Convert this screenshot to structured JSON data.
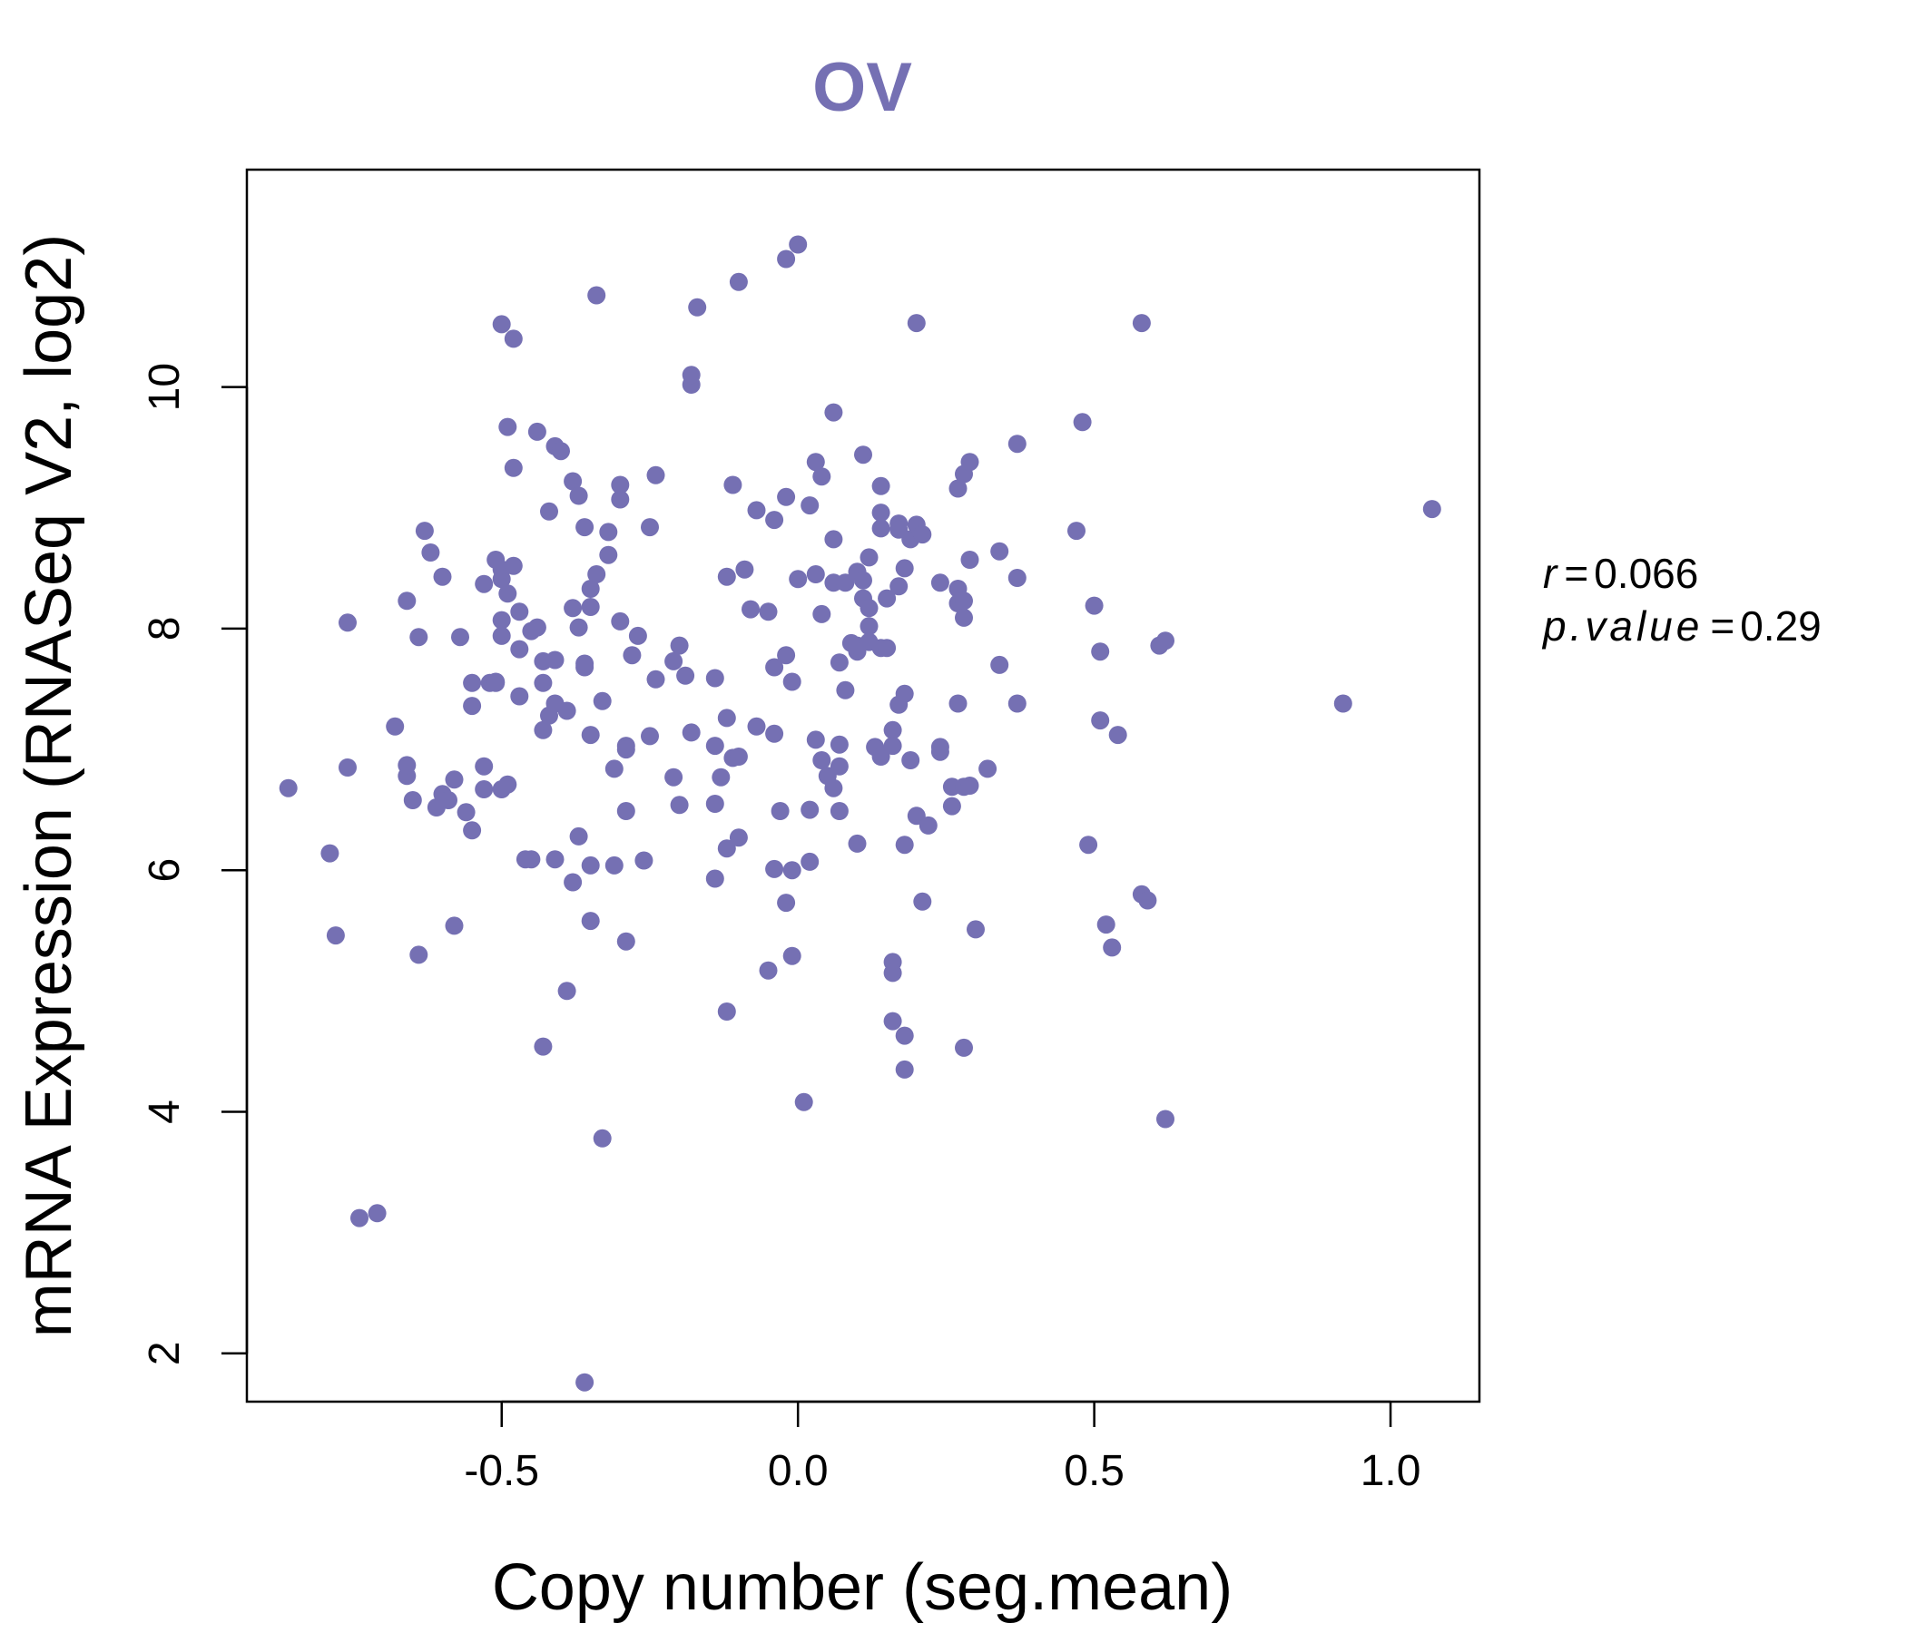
{
  "chart_data": {
    "type": "scatter",
    "title": "OV",
    "xlabel": "Copy number (seg.mean)",
    "ylabel": "mRNA Expression (RNASeq V2, log2)",
    "xlim": [
      -0.93,
      1.15
    ],
    "ylim": [
      1.6,
      11.8
    ],
    "x_ticks": [
      -0.5,
      0.0,
      0.5,
      1.0
    ],
    "x_tick_labels": [
      "-0.5",
      "0.0",
      "0.5",
      "1.0"
    ],
    "y_ticks": [
      2,
      4,
      6,
      8,
      10
    ],
    "y_tick_labels": [
      "2",
      "4",
      "6",
      "8",
      "10"
    ],
    "grid": false,
    "legend": "none",
    "colors": {
      "points": "#7570b3",
      "title": "#7570b3",
      "axes": "#000000"
    },
    "stats": {
      "r_label": "r",
      "r_value": "0.066",
      "p_label": "p.value",
      "p_value": "0.29"
    },
    "points": [
      [
        -0.86,
        6.68
      ],
      [
        -0.79,
        6.14
      ],
      [
        -0.78,
        5.46
      ],
      [
        -0.76,
        6.85
      ],
      [
        -0.76,
        8.05
      ],
      [
        -0.74,
        3.12
      ],
      [
        -0.71,
        3.16
      ],
      [
        -0.68,
        7.19
      ],
      [
        -0.66,
        8.23
      ],
      [
        -0.66,
        6.78
      ],
      [
        -0.66,
        6.87
      ],
      [
        -0.65,
        6.58
      ],
      [
        -0.64,
        5.3
      ],
      [
        -0.64,
        7.93
      ],
      [
        -0.63,
        8.81
      ],
      [
        -0.62,
        8.63
      ],
      [
        -0.61,
        6.52
      ],
      [
        -0.6,
        6.63
      ],
      [
        -0.6,
        8.43
      ],
      [
        -0.59,
        6.58
      ],
      [
        -0.58,
        5.54
      ],
      [
        -0.58,
        6.75
      ],
      [
        -0.57,
        7.93
      ],
      [
        -0.56,
        6.48
      ],
      [
        -0.55,
        6.33
      ],
      [
        -0.55,
        7.36
      ],
      [
        -0.55,
        7.55
      ],
      [
        -0.53,
        6.67
      ],
      [
        -0.53,
        6.86
      ],
      [
        -0.53,
        8.37
      ],
      [
        -0.52,
        7.55
      ],
      [
        -0.51,
        7.56
      ],
      [
        -0.51,
        7.55
      ],
      [
        -0.51,
        8.57
      ],
      [
        -0.5,
        6.67
      ],
      [
        -0.5,
        7.94
      ],
      [
        -0.5,
        8.07
      ],
      [
        -0.5,
        8.41
      ],
      [
        -0.5,
        8.49
      ],
      [
        -0.5,
        10.52
      ],
      [
        -0.49,
        6.71
      ],
      [
        -0.49,
        8.29
      ],
      [
        -0.49,
        9.67
      ],
      [
        -0.48,
        10.4
      ],
      [
        -0.48,
        9.33
      ],
      [
        -0.48,
        8.52
      ],
      [
        -0.47,
        7.44
      ],
      [
        -0.47,
        7.83
      ],
      [
        -0.47,
        8.14
      ],
      [
        -0.46,
        6.09
      ],
      [
        -0.45,
        7.98
      ],
      [
        -0.45,
        6.09
      ],
      [
        -0.44,
        8.01
      ],
      [
        -0.44,
        9.63
      ],
      [
        -0.43,
        4.54
      ],
      [
        -0.43,
        7.16
      ],
      [
        -0.43,
        7.73
      ],
      [
        -0.43,
        7.55
      ],
      [
        -0.42,
        7.28
      ],
      [
        -0.42,
        8.97
      ],
      [
        -0.41,
        6.09
      ],
      [
        -0.41,
        7.38
      ],
      [
        -0.41,
        7.74
      ],
      [
        -0.41,
        9.51
      ],
      [
        -0.4,
        9.47
      ],
      [
        -0.39,
        5.0
      ],
      [
        -0.39,
        7.32
      ],
      [
        -0.38,
        8.17
      ],
      [
        -0.38,
        5.9
      ],
      [
        -0.38,
        9.22
      ],
      [
        -0.37,
        8.01
      ],
      [
        -0.37,
        6.28
      ],
      [
        -0.37,
        9.1
      ],
      [
        -0.36,
        8.84
      ],
      [
        -0.36,
        7.68
      ],
      [
        -0.36,
        7.71
      ],
      [
        -0.36,
        1.76
      ],
      [
        -0.35,
        5.58
      ],
      [
        -0.35,
        6.04
      ],
      [
        -0.35,
        7.12
      ],
      [
        -0.35,
        8.18
      ],
      [
        -0.35,
        8.33
      ],
      [
        -0.34,
        8.45
      ],
      [
        -0.34,
        10.76
      ],
      [
        -0.33,
        7.4
      ],
      [
        -0.33,
        3.78
      ],
      [
        -0.32,
        8.61
      ],
      [
        -0.32,
        8.8
      ],
      [
        -0.31,
        6.84
      ],
      [
        -0.31,
        6.04
      ],
      [
        -0.3,
        9.07
      ],
      [
        -0.3,
        9.19
      ],
      [
        -0.3,
        8.06
      ],
      [
        -0.29,
        7.03
      ],
      [
        -0.29,
        7.0
      ],
      [
        -0.29,
        6.49
      ],
      [
        -0.29,
        5.41
      ],
      [
        -0.28,
        7.78
      ],
      [
        -0.27,
        7.94
      ],
      [
        -0.26,
        6.08
      ],
      [
        -0.25,
        8.84
      ],
      [
        -0.25,
        7.11
      ],
      [
        -0.24,
        7.58
      ],
      [
        -0.24,
        9.27
      ],
      [
        -0.21,
        7.73
      ],
      [
        -0.21,
        6.77
      ],
      [
        -0.2,
        7.86
      ],
      [
        -0.2,
        6.54
      ],
      [
        -0.19,
        7.61
      ],
      [
        -0.18,
        7.14
      ],
      [
        -0.18,
        10.02
      ],
      [
        -0.18,
        10.1
      ],
      [
        -0.17,
        10.66
      ],
      [
        -0.14,
        6.55
      ],
      [
        -0.14,
        7.03
      ],
      [
        -0.14,
        7.59
      ],
      [
        -0.14,
        5.93
      ],
      [
        -0.13,
        6.77
      ],
      [
        -0.12,
        4.83
      ],
      [
        -0.12,
        7.26
      ],
      [
        -0.12,
        6.18
      ],
      [
        -0.12,
        8.43
      ],
      [
        -0.11,
        6.93
      ],
      [
        -0.11,
        9.19
      ],
      [
        -0.1,
        6.94
      ],
      [
        -0.1,
        6.27
      ],
      [
        -0.1,
        10.87
      ],
      [
        -0.09,
        8.49
      ],
      [
        -0.08,
        8.16
      ],
      [
        -0.07,
        7.19
      ],
      [
        -0.07,
        8.98
      ],
      [
        -0.05,
        8.14
      ],
      [
        -0.05,
        5.17
      ],
      [
        -0.04,
        7.13
      ],
      [
        -0.04,
        8.9
      ],
      [
        -0.04,
        6.01
      ],
      [
        -0.04,
        7.68
      ],
      [
        -0.03,
        6.49
      ],
      [
        -0.02,
        7.78
      ],
      [
        -0.02,
        9.09
      ],
      [
        -0.02,
        5.73
      ],
      [
        -0.02,
        11.06
      ],
      [
        -0.01,
        5.29
      ],
      [
        -0.01,
        7.56
      ],
      [
        -0.01,
        6.0
      ],
      [
        0.0,
        8.41
      ],
      [
        0.0,
        11.18
      ],
      [
        0.01,
        4.08
      ],
      [
        0.02,
        6.07
      ],
      [
        0.02,
        9.02
      ],
      [
        0.02,
        6.5
      ],
      [
        0.03,
        7.08
      ],
      [
        0.03,
        9.38
      ],
      [
        0.03,
        8.45
      ],
      [
        0.04,
        6.91
      ],
      [
        0.04,
        9.26
      ],
      [
        0.04,
        8.12
      ],
      [
        0.05,
        6.78
      ],
      [
        0.06,
        8.74
      ],
      [
        0.06,
        8.38
      ],
      [
        0.06,
        6.68
      ],
      [
        0.06,
        9.79
      ],
      [
        0.07,
        7.72
      ],
      [
        0.07,
        6.49
      ],
      [
        0.07,
        7.04
      ],
      [
        0.07,
        6.86
      ],
      [
        0.08,
        8.38
      ],
      [
        0.08,
        7.49
      ],
      [
        0.09,
        7.88
      ],
      [
        0.1,
        6.22
      ],
      [
        0.1,
        7.81
      ],
      [
        0.1,
        8.47
      ],
      [
        0.1,
        7.86
      ],
      [
        0.11,
        8.4
      ],
      [
        0.11,
        9.44
      ],
      [
        0.11,
        8.25
      ],
      [
        0.12,
        8.59
      ],
      [
        0.12,
        8.02
      ],
      [
        0.12,
        7.89
      ],
      [
        0.12,
        8.17
      ],
      [
        0.13,
        7.02
      ],
      [
        0.14,
        6.94
      ],
      [
        0.14,
        8.83
      ],
      [
        0.14,
        8.96
      ],
      [
        0.14,
        9.18
      ],
      [
        0.14,
        7.84
      ],
      [
        0.15,
        8.25
      ],
      [
        0.15,
        7.84
      ],
      [
        0.16,
        7.16
      ],
      [
        0.16,
        5.24
      ],
      [
        0.16,
        5.15
      ],
      [
        0.16,
        4.75
      ],
      [
        0.16,
        7.03
      ],
      [
        0.17,
        8.35
      ],
      [
        0.17,
        8.87
      ],
      [
        0.17,
        8.82
      ],
      [
        0.17,
        7.37
      ],
      [
        0.18,
        7.46
      ],
      [
        0.18,
        6.21
      ],
      [
        0.18,
        4.63
      ],
      [
        0.18,
        4.35
      ],
      [
        0.18,
        8.5
      ],
      [
        0.19,
        8.74
      ],
      [
        0.19,
        6.91
      ],
      [
        0.2,
        6.45
      ],
      [
        0.2,
        8.86
      ],
      [
        0.2,
        10.53
      ],
      [
        0.21,
        5.74
      ],
      [
        0.21,
        8.78
      ],
      [
        0.22,
        6.37
      ],
      [
        0.24,
        8.38
      ],
      [
        0.24,
        6.98
      ],
      [
        0.24,
        7.02
      ],
      [
        0.26,
        6.53
      ],
      [
        0.26,
        6.69
      ],
      [
        0.27,
        8.33
      ],
      [
        0.27,
        9.16
      ],
      [
        0.27,
        8.21
      ],
      [
        0.27,
        7.38
      ],
      [
        0.28,
        9.28
      ],
      [
        0.28,
        8.23
      ],
      [
        0.28,
        8.09
      ],
      [
        0.28,
        6.69
      ],
      [
        0.28,
        4.53
      ],
      [
        0.29,
        8.57
      ],
      [
        0.29,
        9.38
      ],
      [
        0.29,
        6.7
      ],
      [
        0.3,
        5.51
      ],
      [
        0.32,
        6.84
      ],
      [
        0.34,
        8.64
      ],
      [
        0.34,
        7.7
      ],
      [
        0.37,
        9.53
      ],
      [
        0.37,
        8.42
      ],
      [
        0.37,
        7.38
      ],
      [
        0.47,
        8.81
      ],
      [
        0.48,
        9.71
      ],
      [
        0.49,
        6.21
      ],
      [
        0.5,
        8.19
      ],
      [
        0.51,
        7.81
      ],
      [
        0.51,
        7.24
      ],
      [
        0.52,
        5.55
      ],
      [
        0.53,
        5.36
      ],
      [
        0.54,
        7.12
      ],
      [
        0.58,
        10.53
      ],
      [
        0.58,
        5.8
      ],
      [
        0.59,
        5.75
      ],
      [
        0.61,
        7.86
      ],
      [
        0.62,
        7.9
      ],
      [
        0.62,
        3.94
      ],
      [
        0.92,
        7.38
      ],
      [
        1.07,
        8.99
      ]
    ]
  }
}
